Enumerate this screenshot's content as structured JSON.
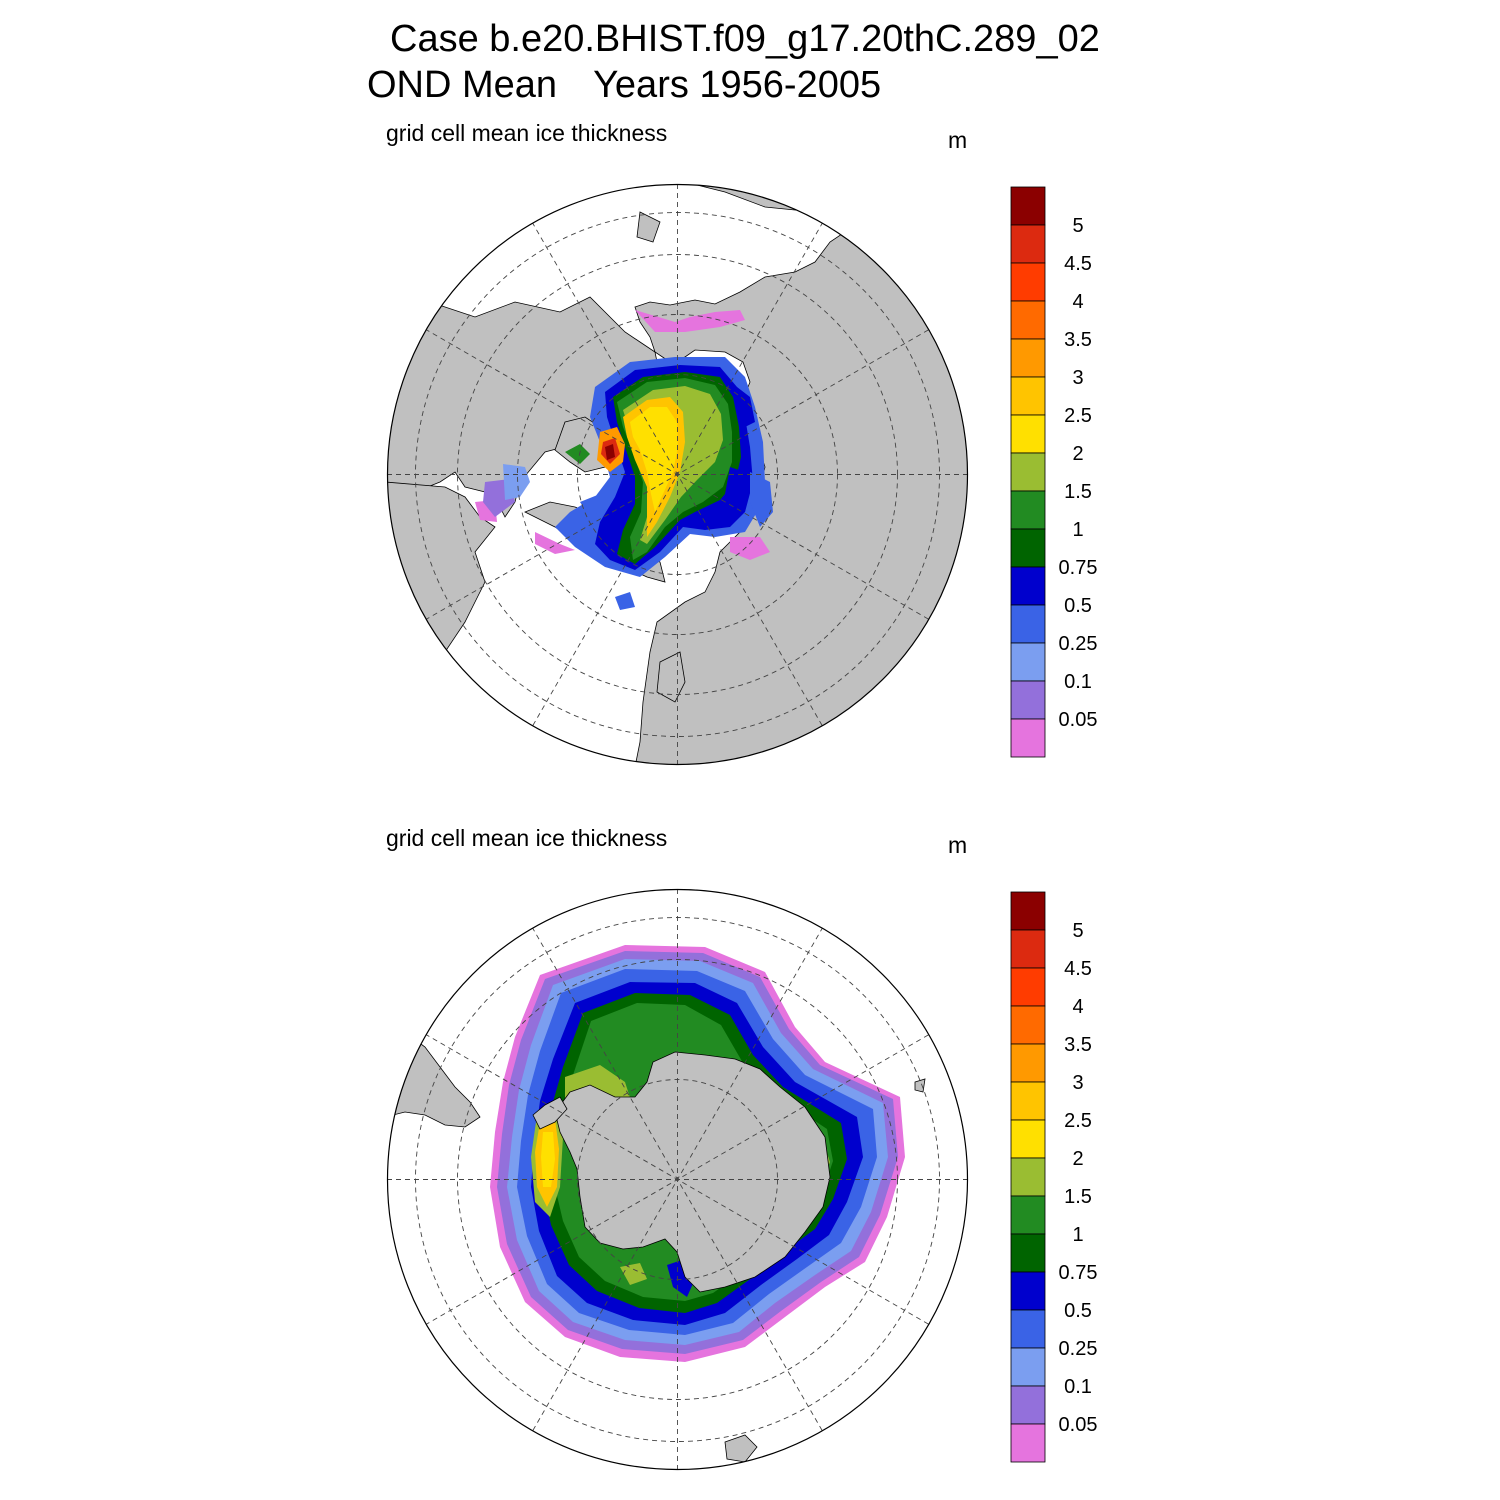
{
  "title": {
    "case": "Case b.e20.BHIST.f09_g17.20thC.289_02",
    "season": "OND Mean",
    "years": "Years 1956-2005"
  },
  "panels": [
    {
      "id": "north",
      "hemisphere": "NH",
      "title": "grid cell mean ice thickness",
      "units": "m"
    },
    {
      "id": "south",
      "hemisphere": "SH",
      "title": "grid cell mean ice thickness",
      "units": "m"
    }
  ],
  "colorbar": {
    "labels": [
      "5",
      "4.5",
      "4",
      "3.5",
      "3",
      "2.5",
      "2",
      "1.5",
      "1",
      "0.75",
      "0.5",
      "0.25",
      "0.1",
      "0.05"
    ],
    "colors_top_to_bottom": [
      "#8b0000",
      "#dc2a10",
      "#ff3c00",
      "#ff6a00",
      "#ff9900",
      "#ffc400",
      "#ffe000",
      "#9abd32",
      "#228b22",
      "#006400",
      "#0000cd",
      "#3a63e6",
      "#7b9ef0",
      "#9370db",
      "#e574de"
    ]
  },
  "colors": {
    "land": "#c0c0c0",
    "ocean": "#ffffff"
  }
}
